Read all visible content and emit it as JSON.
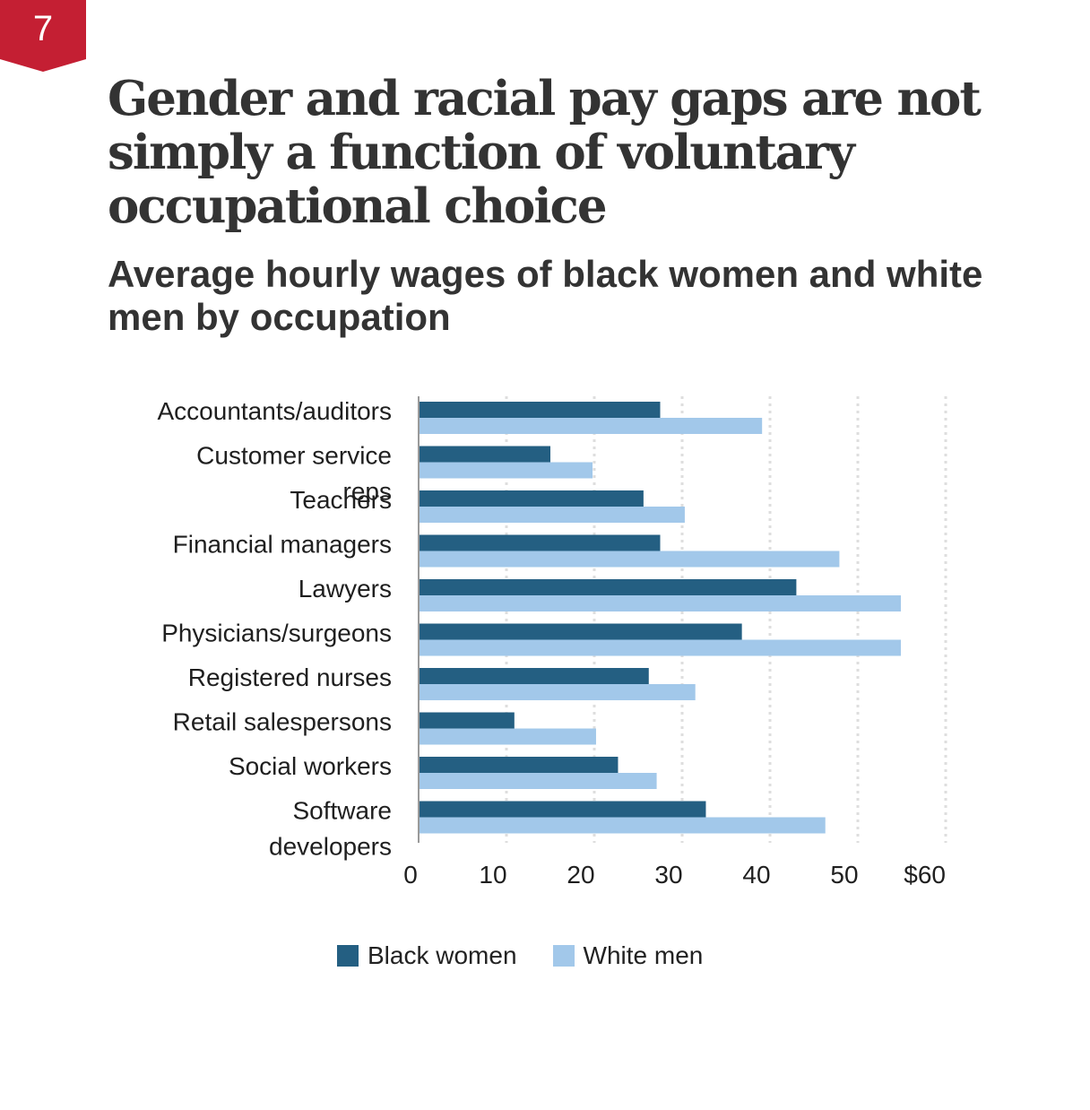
{
  "badge": {
    "number": "7",
    "color": "#c41f33"
  },
  "title": "Gender and racial pay gaps are not simply a function of voluntary occupational choice",
  "subtitle": "Average hourly wages of black women and white men by occupation",
  "chart_data": {
    "type": "bar",
    "orientation": "horizontal",
    "title": "Gender and racial pay gaps are not simply a function of voluntary occupational choice",
    "subtitle": "Average hourly wages of black women and white men by occupation",
    "categories": [
      [
        "Accountants/auditors"
      ],
      [
        "Customer service",
        "reps"
      ],
      [
        "Teachers"
      ],
      [
        "Financial managers"
      ],
      [
        "Lawyers"
      ],
      [
        "Physicians/surgeons"
      ],
      [
        "Registered nurses"
      ],
      [
        "Retail salespersons"
      ],
      [
        "Social workers"
      ],
      [
        "Software",
        "developers"
      ]
    ],
    "series": [
      {
        "name": "Black women",
        "color": "#245f82",
        "values": [
          27.5,
          15.0,
          25.6,
          27.5,
          43.0,
          36.8,
          26.2,
          10.9,
          22.7,
          32.7
        ]
      },
      {
        "name": "White men",
        "color": "#a2c8ea",
        "values": [
          39.1,
          19.8,
          30.3,
          47.9,
          54.9,
          54.9,
          31.5,
          20.2,
          27.1,
          46.3
        ]
      }
    ],
    "xlim": [
      0,
      60
    ],
    "xticks": [
      0,
      10,
      20,
      30,
      40,
      50,
      60
    ],
    "xtick_labels": [
      "0",
      "10",
      "20",
      "30",
      "40",
      "50",
      "$60"
    ],
    "xlabel": "",
    "ylabel": "",
    "grid": "vertical dotted",
    "legend": "bottom-center"
  }
}
